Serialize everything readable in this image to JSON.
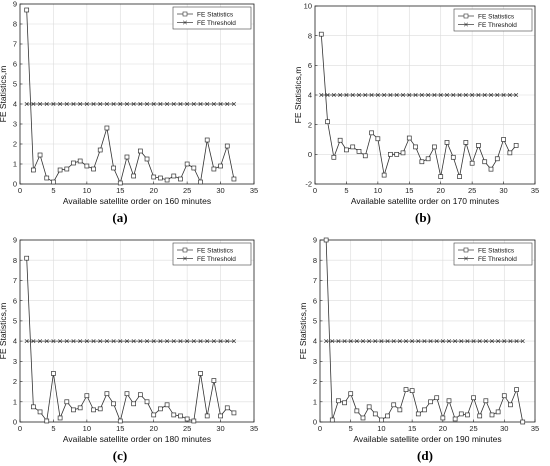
{
  "chart_data": [
    {
      "panel": "(a)",
      "type": "line",
      "xlabel": "Available satellite order on 160 minutes",
      "ylabel": "FE Statistics,m",
      "xlim": [
        0,
        35
      ],
      "ylim": [
        0,
        9
      ],
      "xticks": [
        0,
        5,
        10,
        15,
        20,
        25,
        30,
        35
      ],
      "yticks": [
        0,
        1,
        2,
        3,
        4,
        5,
        6,
        7,
        8,
        9
      ],
      "grid": true,
      "legend": "top-right",
      "x": [
        1,
        2,
        3,
        4,
        5,
        6,
        7,
        8,
        9,
        10,
        11,
        12,
        13,
        14,
        15,
        16,
        17,
        18,
        19,
        20,
        21,
        22,
        23,
        24,
        25,
        26,
        27,
        28,
        29,
        30,
        31,
        32
      ],
      "series": [
        {
          "name": "FE Statistics",
          "marker": "square",
          "values": [
            8.7,
            0.7,
            1.45,
            0.3,
            0.1,
            0.7,
            0.75,
            1.05,
            1.15,
            0.9,
            0.75,
            1.7,
            2.8,
            0.8,
            0.05,
            1.35,
            0.4,
            1.65,
            1.25,
            0.35,
            0.3,
            0.2,
            0.4,
            0.25,
            1.0,
            0.8,
            0.1,
            2.2,
            0.75,
            0.9,
            1.9,
            0.25
          ]
        },
        {
          "name": "FE Threshold",
          "marker": "x",
          "values": [
            4,
            4,
            4,
            4,
            4,
            4,
            4,
            4,
            4,
            4,
            4,
            4,
            4,
            4,
            4,
            4,
            4,
            4,
            4,
            4,
            4,
            4,
            4,
            4,
            4,
            4,
            4,
            4,
            4,
            4,
            4,
            4
          ]
        }
      ]
    },
    {
      "panel": "(b)",
      "type": "line",
      "xlabel": "Available satellite order on 170 minutes",
      "ylabel": "FE Statistics,m",
      "xlim": [
        0,
        35
      ],
      "ylim": [
        -2,
        10
      ],
      "xticks": [
        0,
        5,
        10,
        15,
        20,
        25,
        30,
        35
      ],
      "yticks": [
        -2,
        0,
        2,
        4,
        6,
        8,
        10
      ],
      "grid": true,
      "legend": "top-right",
      "x": [
        1,
        2,
        3,
        4,
        5,
        6,
        7,
        8,
        9,
        10,
        11,
        12,
        13,
        14,
        15,
        16,
        17,
        18,
        19,
        20,
        21,
        22,
        23,
        24,
        25,
        26,
        27,
        28,
        29,
        30,
        31,
        32
      ],
      "series": [
        {
          "name": "FE Statistics",
          "marker": "square",
          "values": [
            8.1,
            2.2,
            -0.2,
            0.95,
            0.3,
            0.5,
            0.2,
            -0.1,
            1.45,
            1.05,
            -1.4,
            0.0,
            0.0,
            0.1,
            1.1,
            0.5,
            -0.5,
            -0.3,
            0.5,
            -1.5,
            0.8,
            -0.2,
            -1.5,
            0.8,
            -0.6,
            0.6,
            -0.5,
            -1.0,
            -0.3,
            1.0,
            0.1,
            0.6
          ]
        },
        {
          "name": "FE Threshold",
          "marker": "x",
          "values": [
            4,
            4,
            4,
            4,
            4,
            4,
            4,
            4,
            4,
            4,
            4,
            4,
            4,
            4,
            4,
            4,
            4,
            4,
            4,
            4,
            4,
            4,
            4,
            4,
            4,
            4,
            4,
            4,
            4,
            4,
            4,
            4
          ]
        }
      ]
    },
    {
      "panel": "(c)",
      "type": "line",
      "xlabel": "Available satellite order on 180 minutes",
      "ylabel": "FE Statistics,m",
      "xlim": [
        0,
        35
      ],
      "ylim": [
        0,
        9
      ],
      "xticks": [
        0,
        5,
        10,
        15,
        20,
        25,
        30,
        35
      ],
      "yticks": [
        0,
        1,
        2,
        3,
        4,
        5,
        6,
        7,
        8,
        9
      ],
      "grid": true,
      "legend": "top-right",
      "x": [
        1,
        2,
        3,
        4,
        5,
        6,
        7,
        8,
        9,
        10,
        11,
        12,
        13,
        14,
        15,
        16,
        17,
        18,
        19,
        20,
        21,
        22,
        23,
        24,
        25,
        26,
        27,
        28,
        29,
        30,
        31,
        32
      ],
      "series": [
        {
          "name": "FE Statistics",
          "marker": "square",
          "values": [
            8.1,
            0.75,
            0.5,
            0.05,
            2.4,
            0.2,
            1.0,
            0.6,
            0.7,
            1.3,
            0.6,
            0.65,
            1.4,
            0.9,
            0.05,
            1.4,
            0.9,
            1.35,
            1.0,
            0.35,
            0.65,
            0.85,
            0.35,
            0.3,
            0.15,
            0.05,
            2.4,
            0.3,
            2.05,
            0.3,
            0.7,
            0.45
          ]
        },
        {
          "name": "FE Threshold",
          "marker": "x",
          "values": [
            4,
            4,
            4,
            4,
            4,
            4,
            4,
            4,
            4,
            4,
            4,
            4,
            4,
            4,
            4,
            4,
            4,
            4,
            4,
            4,
            4,
            4,
            4,
            4,
            4,
            4,
            4,
            4,
            4,
            4,
            4,
            4
          ]
        }
      ]
    },
    {
      "panel": "(d)",
      "type": "line",
      "xlabel": "Available satellite order on 190 minutes",
      "ylabel": "FE Statistics,m",
      "xlim": [
        0,
        35
      ],
      "ylim": [
        0,
        9
      ],
      "xticks": [
        0,
        5,
        10,
        15,
        20,
        25,
        30,
        35
      ],
      "yticks": [
        0,
        1,
        2,
        3,
        4,
        5,
        6,
        7,
        8,
        9
      ],
      "grid": true,
      "legend": "top-right",
      "x": [
        1,
        2,
        3,
        4,
        5,
        6,
        7,
        8,
        9,
        10,
        11,
        12,
        13,
        14,
        15,
        16,
        17,
        18,
        19,
        20,
        21,
        22,
        23,
        24,
        25,
        26,
        27,
        28,
        29,
        30,
        31,
        32,
        33
      ],
      "series": [
        {
          "name": "FE Statistics",
          "marker": "square",
          "values": [
            9.0,
            0.1,
            1.05,
            0.95,
            1.4,
            0.55,
            0.2,
            0.75,
            0.4,
            0.1,
            0.3,
            0.85,
            0.6,
            1.6,
            1.55,
            0.4,
            0.6,
            1.0,
            1.2,
            0.2,
            1.05,
            0.15,
            0.4,
            0.35,
            1.2,
            0.3,
            1.05,
            0.35,
            0.5,
            1.3,
            0.85,
            1.6,
            0.0
          ]
        },
        {
          "name": "FE Threshold",
          "marker": "x",
          "values": [
            4,
            4,
            4,
            4,
            4,
            4,
            4,
            4,
            4,
            4,
            4,
            4,
            4,
            4,
            4,
            4,
            4,
            4,
            4,
            4,
            4,
            4,
            4,
            4,
            4,
            4,
            4,
            4,
            4,
            4,
            4,
            4,
            4
          ]
        }
      ]
    }
  ]
}
